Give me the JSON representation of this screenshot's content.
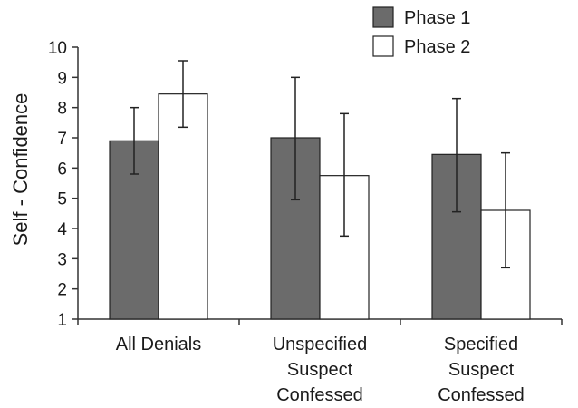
{
  "chart_data": {
    "type": "bar",
    "title": "",
    "xlabel": "",
    "ylabel": "Self - Confidence",
    "ylim": [
      1,
      10
    ],
    "yticks": [
      1,
      2,
      3,
      4,
      5,
      6,
      7,
      8,
      9,
      10
    ],
    "categories": [
      [
        "All Denials"
      ],
      [
        "Unspecified",
        "Suspect",
        "Confessed"
      ],
      [
        "Specified",
        "Suspect",
        "Confessed"
      ]
    ],
    "series": [
      {
        "name": "Phase 1",
        "color": "#6b6b6b",
        "values": [
          6.9,
          7.0,
          6.45
        ],
        "error_low": [
          5.8,
          4.95,
          4.55
        ],
        "error_high": [
          8.0,
          9.0,
          8.3
        ]
      },
      {
        "name": "Phase 2",
        "color": "#ffffff",
        "values": [
          8.45,
          5.75,
          4.6
        ],
        "error_low": [
          7.35,
          3.75,
          2.7
        ],
        "error_high": [
          9.55,
          7.8,
          6.5
        ]
      }
    ],
    "grid": false,
    "legend_position": "top-right",
    "error_bars": true
  }
}
